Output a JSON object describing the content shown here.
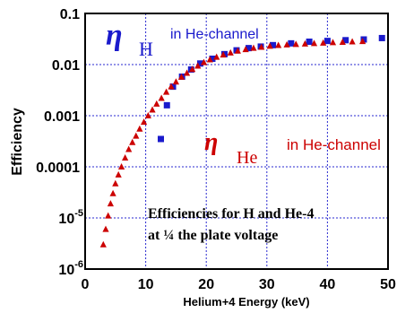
{
  "chart_data": {
    "type": "scatter",
    "title": "",
    "xlabel": "Helium+4 Energy (keV)",
    "ylabel": "Efficiency",
    "xlim": [
      0,
      50
    ],
    "ylim": [
      1e-06,
      0.1
    ],
    "yscale": "log",
    "grid": true,
    "x_ticks": [
      "0",
      "10",
      "20",
      "30",
      "40",
      "50"
    ],
    "y_ticks": [
      {
        "base": "0.1",
        "exp": ""
      },
      {
        "base": "0.01",
        "exp": ""
      },
      {
        "base": "0.001",
        "exp": ""
      },
      {
        "base": "0.0001",
        "exp": ""
      },
      {
        "base": "10",
        "exp": "-5"
      },
      {
        "base": "10",
        "exp": "-6"
      }
    ],
    "series": [
      {
        "marker": "square",
        "color": "#1a1acc",
        "points": [
          [
            12.5,
            0.00035
          ],
          [
            13.5,
            0.0016
          ],
          [
            14.5,
            0.0037
          ],
          [
            16,
            0.0058
          ],
          [
            17.5,
            0.008
          ],
          [
            19,
            0.0105
          ],
          [
            21,
            0.013
          ],
          [
            23,
            0.016
          ],
          [
            25,
            0.019
          ],
          [
            27,
            0.021
          ],
          [
            29,
            0.0225
          ],
          [
            31,
            0.024
          ],
          [
            34,
            0.026
          ],
          [
            37,
            0.028
          ],
          [
            40,
            0.029
          ],
          [
            43,
            0.03
          ],
          [
            46,
            0.031
          ],
          [
            49,
            0.033
          ]
        ]
      },
      {
        "marker": "triangle",
        "color": "#cc0000",
        "points": [
          [
            3,
            3e-06
          ],
          [
            3.4,
            6e-06
          ],
          [
            3.8,
            1.1e-05
          ],
          [
            4.2,
            1.9e-05
          ],
          [
            4.6,
            3e-05
          ],
          [
            5.0,
            4.7e-05
          ],
          [
            5.5,
            7e-05
          ],
          [
            6.0,
            0.0001
          ],
          [
            6.6,
            0.00015
          ],
          [
            7.2,
            0.00022
          ],
          [
            7.8,
            0.0003
          ],
          [
            8.4,
            0.0004
          ],
          [
            9.0,
            0.00055
          ],
          [
            9.7,
            0.00075
          ],
          [
            10.4,
            0.001
          ],
          [
            11.1,
            0.0013
          ],
          [
            11.8,
            0.0017
          ],
          [
            12.6,
            0.0022
          ],
          [
            13.4,
            0.0029
          ],
          [
            14.2,
            0.0037
          ],
          [
            15.0,
            0.0046
          ],
          [
            15.9,
            0.0057
          ],
          [
            16.8,
            0.0068
          ],
          [
            17.7,
            0.0081
          ],
          [
            18.6,
            0.0094
          ],
          [
            19.6,
            0.011
          ],
          [
            20.6,
            0.0125
          ],
          [
            21.7,
            0.014
          ],
          [
            22.8,
            0.0155
          ],
          [
            24.0,
            0.017
          ],
          [
            25.2,
            0.0185
          ],
          [
            26.5,
            0.0198
          ],
          [
            27.8,
            0.021
          ],
          [
            29.1,
            0.022
          ],
          [
            30.5,
            0.023
          ],
          [
            31.9,
            0.0238
          ],
          [
            33.3,
            0.0245
          ],
          [
            34.8,
            0.025
          ],
          [
            36.3,
            0.0255
          ],
          [
            37.8,
            0.026
          ],
          [
            39.3,
            0.0265
          ],
          [
            40.9,
            0.027
          ],
          [
            42.5,
            0.0275
          ],
          [
            44.1,
            0.028
          ],
          [
            45.8,
            0.0285
          ]
        ]
      }
    ],
    "annotations": {
      "eta_symbol": "η",
      "h_subscript": "H",
      "h_label": "in He-channel",
      "he_subscript": "He",
      "he_label": "in He-channel",
      "caption_line1": "Efficiencies for H and He-4",
      "caption_line2": "at ¼ the plate voltage"
    }
  }
}
